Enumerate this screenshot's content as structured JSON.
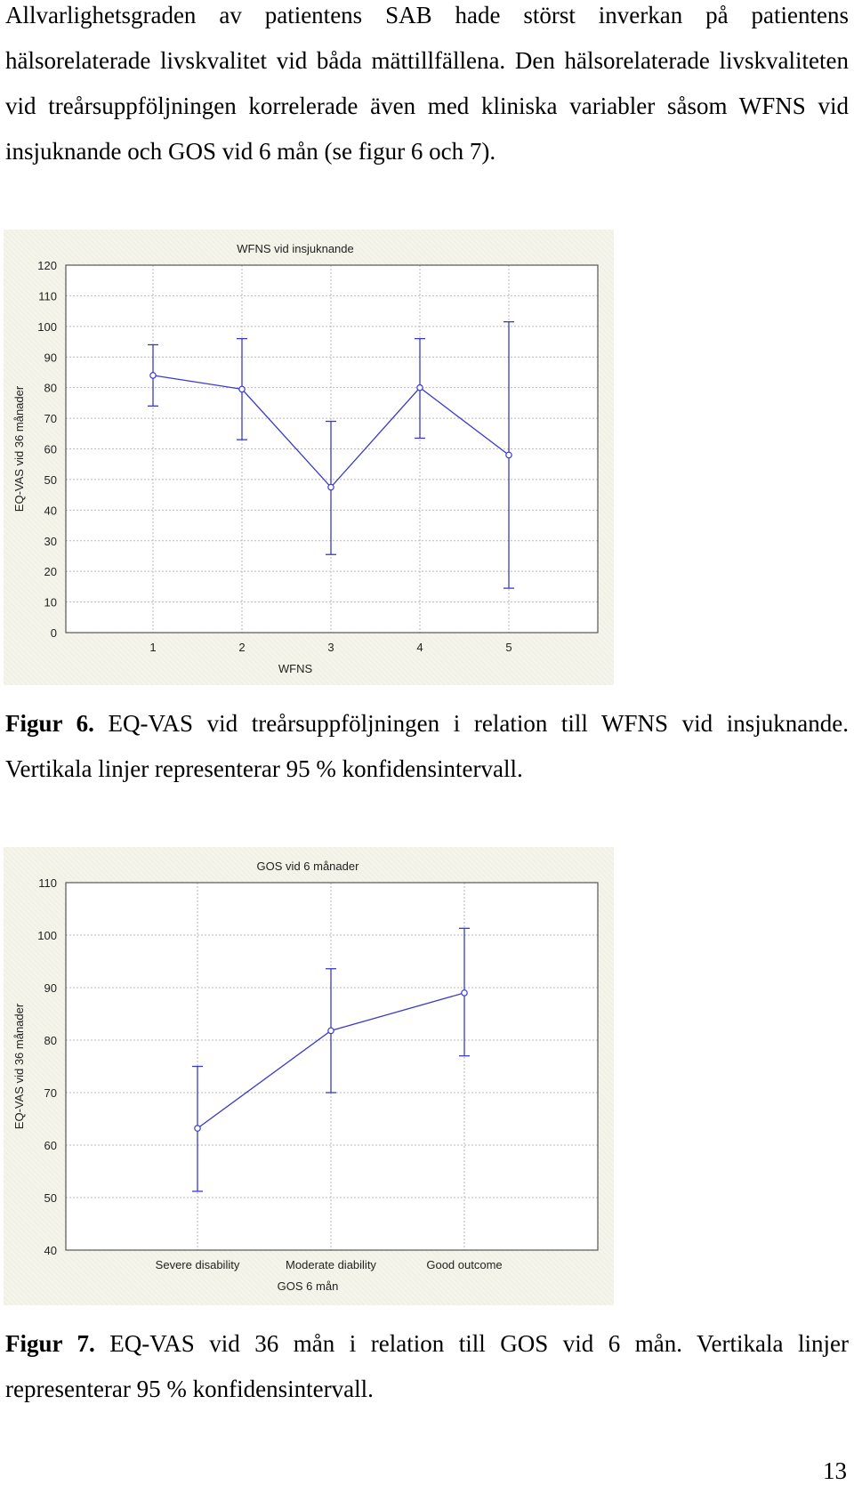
{
  "intro_text": "Allvarlighetsgraden av patientens SAB hade störst inverkan på patientens hälsorelaterade livskvalitet vid båda mättillfällena. Den hälsorelaterade livskvaliteten vid treårsuppföljningen korrelerade även med kliniska variabler såsom WFNS vid insjuknande och GOS vid 6 mån (se figur 6 och 7).",
  "figure6": {
    "caption_label": "Figur 6.",
    "caption_text": " EQ-VAS vid treårsuppföljningen i relation till WFNS vid insjuknande. Vertikala linjer representerar 95 % konfidensintervall."
  },
  "figure7": {
    "caption_label": "Figur 7.",
    "caption_text": " EQ-VAS vid 36 mån i relation till GOS vid 6 mån. Vertikala linjer representerar 95 % konfidensintervall."
  },
  "page_number": "13",
  "colors": {
    "series": "#3a3ac8",
    "grid": "#b9b9b9",
    "panel_bg": "#f1f0e4"
  },
  "chart_data": [
    {
      "type": "line",
      "title": "WFNS vid insjuknande",
      "xlabel": "WFNS",
      "ylabel": "EQ-VAS vid 36 månader",
      "categories": [
        "1",
        "2",
        "3",
        "4",
        "5"
      ],
      "series": [
        {
          "values": [
            84,
            79.5,
            47.5,
            80,
            58
          ],
          "ci_low": [
            74,
            63,
            25.5,
            63.5,
            14.5
          ],
          "ci_high": [
            94,
            96,
            69,
            96,
            101.5
          ]
        }
      ],
      "ylim": [
        0,
        120
      ],
      "yticks": [
        0,
        10,
        20,
        30,
        40,
        50,
        60,
        70,
        80,
        90,
        100,
        110,
        120
      ],
      "grid": true
    },
    {
      "type": "line",
      "title": "GOS vid 6 månader",
      "xlabel": "GOS 6 mån",
      "ylabel": "EQ-VAS vid 36 månader",
      "categories": [
        "Severe disability",
        "Moderate diability",
        "Good outcome"
      ],
      "series": [
        {
          "values": [
            63.2,
            81.8,
            89
          ],
          "ci_low": [
            51.2,
            70,
            77
          ],
          "ci_high": [
            75,
            93.6,
            101.3
          ]
        }
      ],
      "ylim": [
        40,
        110
      ],
      "yticks": [
        40,
        50,
        60,
        70,
        80,
        90,
        100,
        110
      ],
      "grid": true
    }
  ]
}
